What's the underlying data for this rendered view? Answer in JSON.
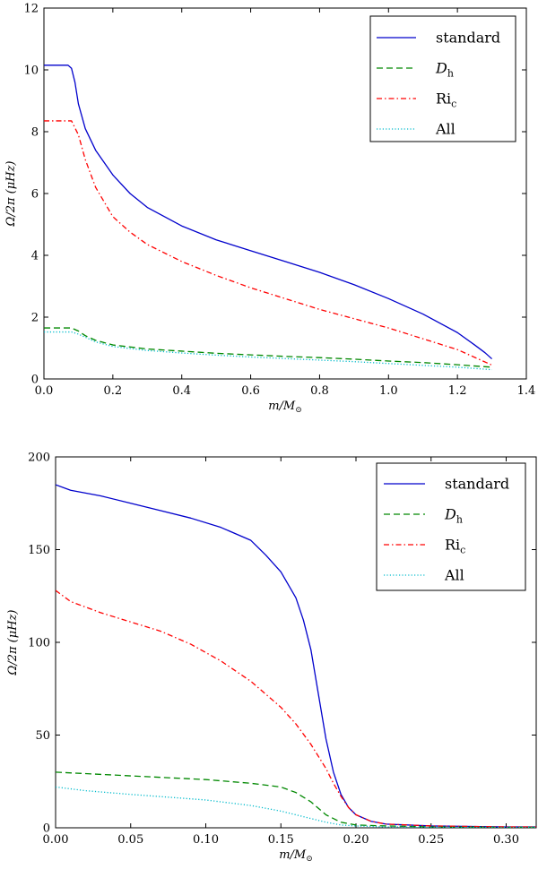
{
  "chart_data": [
    {
      "type": "line",
      "xlabel": "m/M⊙",
      "ylabel": "Ω/2π (μHz)",
      "xlim": [
        0.0,
        1.4
      ],
      "ylim": [
        0,
        12
      ],
      "xticks": [
        "0.0",
        "0.2",
        "0.4",
        "0.6",
        "0.8",
        "1.0",
        "1.2",
        "1.4"
      ],
      "yticks": [
        "0",
        "2",
        "4",
        "6",
        "8",
        "10",
        "12"
      ],
      "legend_position": "top-right",
      "series": [
        {
          "name": "standard",
          "color": "#0000cc",
          "dash": "solid",
          "x": [
            0.0,
            0.07,
            0.08,
            0.09,
            0.1,
            0.12,
            0.15,
            0.2,
            0.25,
            0.3,
            0.4,
            0.5,
            0.6,
            0.7,
            0.8,
            0.9,
            1.0,
            1.1,
            1.2,
            1.25,
            1.28,
            1.3
          ],
          "y": [
            10.15,
            10.15,
            10.05,
            9.6,
            8.9,
            8.1,
            7.4,
            6.6,
            6.0,
            5.55,
            4.95,
            4.5,
            4.15,
            3.8,
            3.45,
            3.05,
            2.6,
            2.1,
            1.5,
            1.1,
            0.85,
            0.65
          ]
        },
        {
          "name": "Dh",
          "color": "#008800",
          "dash": "dashed",
          "x": [
            0.0,
            0.08,
            0.1,
            0.12,
            0.15,
            0.2,
            0.3,
            0.4,
            0.5,
            0.6,
            0.7,
            0.8,
            0.9,
            1.0,
            1.1,
            1.2,
            1.3
          ],
          "y": [
            1.65,
            1.65,
            1.55,
            1.4,
            1.25,
            1.1,
            0.97,
            0.9,
            0.83,
            0.78,
            0.73,
            0.69,
            0.64,
            0.58,
            0.53,
            0.46,
            0.38
          ]
        },
        {
          "name": "Ric",
          "color": "#ff0000",
          "dash": "dashdot",
          "x": [
            0.0,
            0.08,
            0.1,
            0.12,
            0.15,
            0.2,
            0.25,
            0.3,
            0.4,
            0.5,
            0.6,
            0.7,
            0.8,
            0.9,
            1.0,
            1.1,
            1.2,
            1.25,
            1.3
          ],
          "y": [
            8.35,
            8.35,
            7.9,
            7.1,
            6.2,
            5.25,
            4.75,
            4.35,
            3.8,
            3.35,
            2.95,
            2.6,
            2.25,
            1.95,
            1.65,
            1.3,
            0.95,
            0.7,
            0.45
          ]
        },
        {
          "name": "All",
          "color": "#00bbcc",
          "dash": "dotted",
          "x": [
            0.0,
            0.08,
            0.1,
            0.12,
            0.15,
            0.2,
            0.3,
            0.4,
            0.5,
            0.6,
            0.7,
            0.8,
            0.9,
            1.0,
            1.1,
            1.2,
            1.3
          ],
          "y": [
            1.52,
            1.52,
            1.45,
            1.35,
            1.2,
            1.05,
            0.92,
            0.84,
            0.77,
            0.71,
            0.66,
            0.61,
            0.56,
            0.5,
            0.44,
            0.38,
            0.3
          ]
        }
      ]
    },
    {
      "type": "line",
      "xlabel": "m/M⊙",
      "ylabel": "Ω/2π (μHz)",
      "xlim": [
        0.0,
        0.32
      ],
      "ylim": [
        0,
        200
      ],
      "xticks": [
        "0.00",
        "0.05",
        "0.10",
        "0.15",
        "0.20",
        "0.25",
        "0.30"
      ],
      "yticks": [
        "0",
        "50",
        "100",
        "150",
        "200"
      ],
      "legend_position": "top-right",
      "series": [
        {
          "name": "standard",
          "color": "#0000cc",
          "dash": "solid",
          "x": [
            0.0,
            0.01,
            0.03,
            0.05,
            0.07,
            0.09,
            0.11,
            0.13,
            0.14,
            0.15,
            0.16,
            0.165,
            0.17,
            0.175,
            0.18,
            0.185,
            0.19,
            0.195,
            0.2,
            0.21,
            0.22,
            0.25,
            0.3,
            0.32
          ],
          "y": [
            185,
            182,
            179,
            175,
            171,
            167,
            162,
            155,
            147,
            138,
            124,
            112,
            96,
            72,
            48,
            30,
            18,
            11,
            7,
            3.5,
            2,
            1,
            0.5,
            0.5
          ]
        },
        {
          "name": "Dh",
          "color": "#008800",
          "dash": "dashed",
          "x": [
            0.0,
            0.05,
            0.1,
            0.13,
            0.15,
            0.16,
            0.17,
            0.18,
            0.19,
            0.2,
            0.22,
            0.25,
            0.3,
            0.32
          ],
          "y": [
            30,
            28,
            26,
            24,
            22,
            19,
            14,
            7,
            3,
            1.5,
            1,
            0.5,
            0.3,
            0.3
          ]
        },
        {
          "name": "Ric",
          "color": "#ff0000",
          "dash": "dashdot",
          "x": [
            0.0,
            0.01,
            0.03,
            0.05,
            0.07,
            0.09,
            0.11,
            0.13,
            0.15,
            0.16,
            0.17,
            0.18,
            0.185,
            0.19,
            0.195,
            0.2,
            0.21,
            0.22,
            0.25,
            0.3,
            0.32
          ],
          "y": [
            128,
            122,
            116,
            111,
            106,
            99,
            90,
            79,
            65,
            56,
            45,
            32,
            24,
            17,
            11,
            7,
            3.5,
            2,
            1,
            0.5,
            0.5
          ]
        },
        {
          "name": "All",
          "color": "#00bbcc",
          "dash": "dotted",
          "x": [
            0.0,
            0.02,
            0.05,
            0.1,
            0.13,
            0.15,
            0.16,
            0.17,
            0.18,
            0.19,
            0.2,
            0.22,
            0.25,
            0.3,
            0.32
          ],
          "y": [
            22,
            20,
            18,
            15,
            12,
            9,
            7,
            5,
            3,
            1.5,
            1,
            0.5,
            0.3,
            0.2,
            0.2
          ]
        }
      ]
    }
  ]
}
